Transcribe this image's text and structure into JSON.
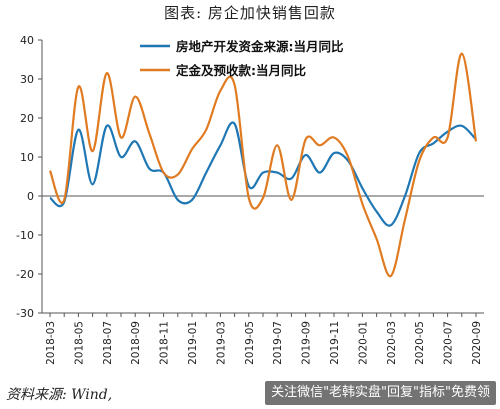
{
  "header": {
    "title": "图表: 房企加快销售回款"
  },
  "footer": {
    "source": "资料来源: Wind,",
    "watermark": "关注微信\"老韩实盘\"回复\"指标\"免费领"
  },
  "chart_data": {
    "type": "line",
    "x": [
      "2018-03",
      "2018-04",
      "2018-05",
      "2018-06",
      "2018-07",
      "2018-08",
      "2018-09",
      "2018-10",
      "2018-11",
      "2018-12",
      "2019-01",
      "2019-02",
      "2019-03",
      "2019-04",
      "2019-05",
      "2019-06",
      "2019-07",
      "2019-08",
      "2019-09",
      "2019-10",
      "2019-11",
      "2019-12",
      "2020-01",
      "2020-02",
      "2020-03",
      "2020-04",
      "2020-05",
      "2020-06",
      "2020-07",
      "2020-08",
      "2020-09"
    ],
    "x_tick_labels": [
      "2018-03",
      "2018-05",
      "2018-07",
      "2018-09",
      "2018-11",
      "2019-01",
      "2019-03",
      "2019-05",
      "2019-07",
      "2019-09",
      "2019-11",
      "2020-01",
      "2020-03",
      "2020-05",
      "2020-07",
      "2020-09"
    ],
    "series": [
      {
        "name": "房地产开发资金来源:当月同比",
        "color": "#1f77b4",
        "values": [
          -0.5,
          -1.5,
          17,
          3,
          18,
          10,
          14,
          7,
          6,
          -1,
          -1,
          6,
          13,
          18.5,
          2.5,
          6,
          6,
          4.5,
          10.5,
          6,
          11,
          9,
          2,
          -4,
          -7.5,
          0,
          11,
          13.5,
          16.5,
          18,
          14.5
        ]
      },
      {
        "name": "定金及预收款:当月同比",
        "color": "#e07b22",
        "values": [
          6.5,
          -1,
          28,
          11.5,
          31.5,
          15,
          25.5,
          16,
          6,
          5.5,
          12,
          17,
          27,
          28.5,
          -0.5,
          -0.5,
          13,
          -1,
          14.5,
          13,
          15,
          10,
          -2,
          -11,
          -20.5,
          -6,
          9,
          15,
          15,
          36.5,
          14
        ]
      }
    ],
    "ylim": [
      -30,
      40
    ],
    "y_ticks": [
      -30,
      -20,
      -10,
      0,
      10,
      20,
      30,
      40
    ],
    "legend": "top-left",
    "grid": false
  }
}
